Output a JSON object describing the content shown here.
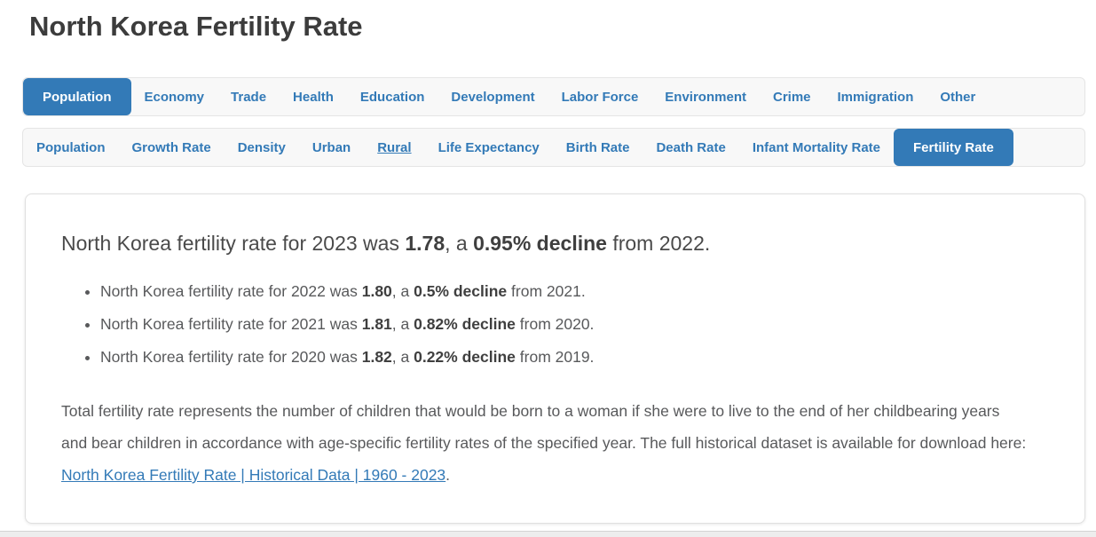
{
  "page": {
    "title": "North Korea Fertility Rate"
  },
  "colors": {
    "accent_blue": "#337ab7",
    "nav_background": "#f8f8f8",
    "title_text": "#3c3c3c",
    "body_text": "#58595b",
    "link": "#337ab7"
  },
  "nav_category": {
    "items": [
      {
        "label": "Population",
        "active": true
      },
      {
        "label": "Economy",
        "active": false
      },
      {
        "label": "Trade",
        "active": false
      },
      {
        "label": "Health",
        "active": false
      },
      {
        "label": "Education",
        "active": false
      },
      {
        "label": "Development",
        "active": false
      },
      {
        "label": "Labor Force",
        "active": false
      },
      {
        "label": "Environment",
        "active": false
      },
      {
        "label": "Crime",
        "active": false
      },
      {
        "label": "Immigration",
        "active": false
      },
      {
        "label": "Other",
        "active": false
      }
    ]
  },
  "nav_metric": {
    "items": [
      {
        "label": "Population",
        "active": false,
        "underlined": false
      },
      {
        "label": "Growth Rate",
        "active": false,
        "underlined": false
      },
      {
        "label": "Density",
        "active": false,
        "underlined": false
      },
      {
        "label": "Urban",
        "active": false,
        "underlined": false
      },
      {
        "label": "Rural",
        "active": false,
        "underlined": true
      },
      {
        "label": "Life Expectancy",
        "active": false,
        "underlined": false
      },
      {
        "label": "Birth Rate",
        "active": false,
        "underlined": false
      },
      {
        "label": "Death Rate",
        "active": false,
        "underlined": false
      },
      {
        "label": "Infant Mortality Rate",
        "active": false,
        "underlined": false
      },
      {
        "label": "Fertility Rate",
        "active": true,
        "underlined": false
      }
    ]
  },
  "summary": {
    "headline": {
      "pre": "North Korea fertility rate for 2023 was ",
      "value": "1.78",
      "mid": ", a ",
      "change": "0.95% decline",
      "post": " from 2022."
    },
    "bullets": [
      {
        "pre": "North Korea fertility rate for 2022 was ",
        "value": "1.80",
        "mid": ", a ",
        "change": "0.5% decline",
        "post": " from 2021."
      },
      {
        "pre": "North Korea fertility rate for 2021 was ",
        "value": "1.81",
        "mid": ", a ",
        "change": "0.82% decline",
        "post": " from 2020."
      },
      {
        "pre": "North Korea fertility rate for 2020 was ",
        "value": "1.82",
        "mid": ", a ",
        "change": "0.22% decline",
        "post": " from 2019."
      }
    ],
    "description": {
      "text": "Total fertility rate represents the number of children that would be born to a woman if she were to live to the end of her childbearing years and bear children in accordance with age-specific fertility rates of the specified year. The full historical dataset is available for download here: ",
      "link_text": "North Korea Fertility Rate | Historical Data | 1960 - 2023",
      "after": "."
    }
  }
}
